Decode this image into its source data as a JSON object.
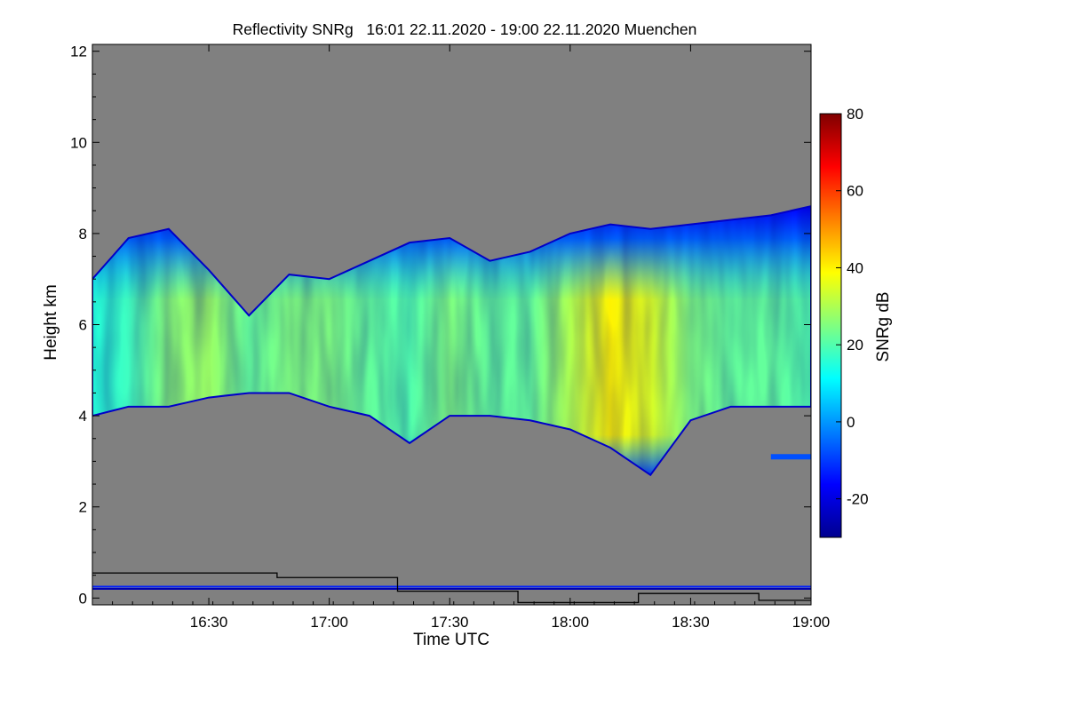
{
  "chart_data": {
    "type": "heatmap",
    "title": "Reflectivity SNRg   16:01 22.11.2020 - 19:00 22.11.2020 Muenchen",
    "xlabel": "Time UTC",
    "ylabel": "Height km",
    "xlim_minutes_utc": [
      961,
      1140
    ],
    "ylim": [
      -0.15,
      12.15
    ],
    "x_ticks": [
      {
        "label": "16:30",
        "value": 990
      },
      {
        "label": "17:00",
        "value": 1020
      },
      {
        "label": "17:30",
        "value": 1050
      },
      {
        "label": "18:00",
        "value": 1080
      },
      {
        "label": "18:30",
        "value": 1110
      },
      {
        "label": "19:00",
        "value": 1140
      }
    ],
    "y_ticks": [
      0,
      2,
      4,
      6,
      8,
      10,
      12
    ],
    "background_color": "#808080",
    "colorbar": {
      "label": "SNRg dB",
      "range": [
        -30,
        80
      ],
      "ticks": [
        -20,
        0,
        20,
        40,
        60,
        80
      ],
      "colormap": [
        "#00008f",
        "#0000ff",
        "#0080ff",
        "#00ffff",
        "#80ff80",
        "#ffff00",
        "#ff8000",
        "#ff0000",
        "#800000"
      ]
    },
    "cloud_layer": {
      "time_utc": [
        "16:01",
        "16:10",
        "16:20",
        "16:30",
        "16:40",
        "16:50",
        "17:00",
        "17:10",
        "17:20",
        "17:30",
        "17:40",
        "17:50",
        "18:00",
        "18:10",
        "18:20",
        "18:30",
        "18:40",
        "18:50",
        "19:00"
      ],
      "top_km": [
        7.0,
        7.9,
        8.1,
        7.2,
        6.2,
        7.1,
        7.0,
        7.4,
        7.8,
        7.9,
        7.4,
        7.6,
        8.0,
        8.2,
        8.1,
        8.2,
        8.3,
        8.4,
        8.6
      ],
      "base_km": [
        4.0,
        4.2,
        4.2,
        4.4,
        4.5,
        4.5,
        4.2,
        4.0,
        3.4,
        4.0,
        4.0,
        3.9,
        3.7,
        3.3,
        2.7,
        3.9,
        4.2,
        4.2,
        4.2
      ],
      "max_snr_dB": [
        15,
        18,
        26,
        28,
        22,
        25,
        25,
        22,
        20,
        25,
        22,
        22,
        30,
        40,
        35,
        25,
        22,
        22,
        20
      ]
    },
    "lower_echo_layer": {
      "time_range_utc": [
        "18:50",
        "19:00"
      ],
      "height_km": 3.1
    },
    "boundary_line_steps": [
      {
        "from": "16:01",
        "to": "16:47",
        "height_km": 0.55
      },
      {
        "from": "16:47",
        "to": "17:17",
        "height_km": 0.45
      },
      {
        "from": "17:17",
        "to": "17:47",
        "height_km": 0.15
      },
      {
        "from": "17:47",
        "to": "18:17",
        "height_km": -0.1
      },
      {
        "from": "18:17",
        "to": "18:47",
        "height_km": 0.1
      },
      {
        "from": "18:47",
        "to": "19:00",
        "height_km": -0.05
      }
    ],
    "surface_clutter_heights_km": [
      0.25,
      0.2
    ]
  }
}
